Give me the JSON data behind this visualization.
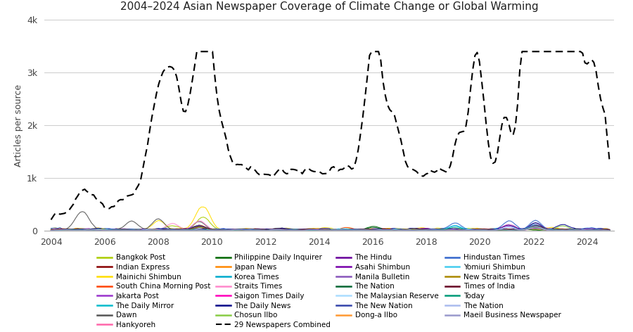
{
  "title": "2004–2024 Asian Newspaper Coverage of Climate Change or Global Warming",
  "ylabel": "Articles per source",
  "ylim": [
    0,
    4000
  ],
  "yticks": [
    0,
    1000,
    2000,
    3000,
    4000
  ],
  "ytick_labels": [
    "0",
    "1k",
    "2k",
    "3k",
    "4k"
  ],
  "xlim_start": 2003.75,
  "xlim_end": 2025.0,
  "xticks": [
    2004,
    2006,
    2008,
    2010,
    2012,
    2014,
    2016,
    2018,
    2020,
    2022,
    2024
  ],
  "bg_color": "#ffffff",
  "grid_color": "#cccccc",
  "legend_entries": [
    {
      "name": "Bangkok Post",
      "color": "#aacc00",
      "dashed": false
    },
    {
      "name": "Indian Express",
      "color": "#880000",
      "dashed": false
    },
    {
      "name": "Mainichi Shimbun",
      "color": "#ffdd00",
      "dashed": false
    },
    {
      "name": "South China Morning Post",
      "color": "#ff4400",
      "dashed": false
    },
    {
      "name": "Jakarta Post",
      "color": "#9933cc",
      "dashed": false
    },
    {
      "name": "The Daily Mirror",
      "color": "#00bbcc",
      "dashed": false
    },
    {
      "name": "Dawn",
      "color": "#555555",
      "dashed": false
    },
    {
      "name": "Hankyoreh",
      "color": "#ff66aa",
      "dashed": false
    },
    {
      "name": "Philippine Daily Inquirer",
      "color": "#006600",
      "dashed": false
    },
    {
      "name": "Japan News",
      "color": "#ff8800",
      "dashed": false
    },
    {
      "name": "Korea Times",
      "color": "#00aacc",
      "dashed": false
    },
    {
      "name": "Straits Times",
      "color": "#ff88cc",
      "dashed": false
    },
    {
      "name": "Saigon Times Daily",
      "color": "#ff00bb",
      "dashed": false
    },
    {
      "name": "The Daily News",
      "color": "#000088",
      "dashed": false
    },
    {
      "name": "Chosun Ilbo",
      "color": "#88cc44",
      "dashed": false
    },
    {
      "name": "29 Newspapers Combined",
      "color": "#000000",
      "dashed": true
    },
    {
      "name": "The Hindu",
      "color": "#660099",
      "dashed": false
    },
    {
      "name": "Asahi Shimbun",
      "color": "#7700aa",
      "dashed": false
    },
    {
      "name": "Manila Bulletin",
      "color": "#8855bb",
      "dashed": false
    },
    {
      "name": "The Nation",
      "color": "#006633",
      "dashed": false
    },
    {
      "name": "The Malaysian Reserve",
      "color": "#aaddff",
      "dashed": false
    },
    {
      "name": "The New Nation",
      "color": "#3344aa",
      "dashed": false
    },
    {
      "name": "Dong-a Ilbo",
      "color": "#ff9933",
      "dashed": false
    },
    {
      "name": "Hindustan Times",
      "color": "#3366cc",
      "dashed": false
    },
    {
      "name": "Yomiuri Shimbun",
      "color": "#44ccee",
      "dashed": false
    },
    {
      "name": "New Straits Times",
      "color": "#aa8800",
      "dashed": false
    },
    {
      "name": "Times of India",
      "color": "#660022",
      "dashed": false
    },
    {
      "name": "Today",
      "color": "#009977",
      "dashed": false
    },
    {
      "name": "The Nation",
      "color": "#aabbee",
      "dashed": false
    },
    {
      "name": "Maeil Business Newspaper",
      "color": "#9999cc",
      "dashed": false
    }
  ]
}
